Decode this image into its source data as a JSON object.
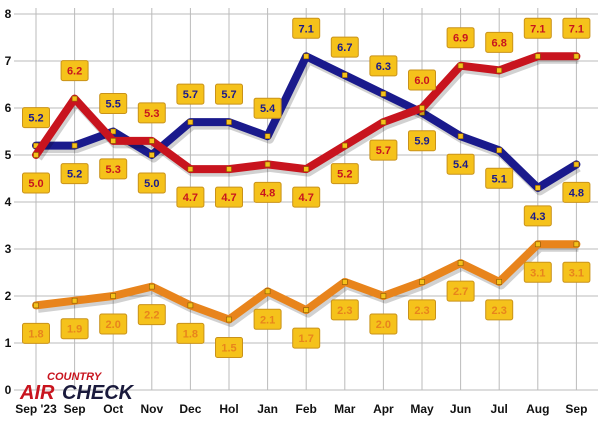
{
  "chart_data": {
    "type": "line",
    "categories": [
      "Sep '23",
      "Sep",
      "Oct",
      "Nov",
      "Dec",
      "Hol",
      "Jan",
      "Feb",
      "Mar",
      "Apr",
      "May",
      "Jun",
      "Jul",
      "Aug",
      "Sep"
    ],
    "ylim": [
      0,
      8
    ],
    "yticks": [
      "0",
      "1",
      "2",
      "3",
      "4",
      "5",
      "6",
      "7",
      "8"
    ],
    "grid": true,
    "series": [
      {
        "color": "#1a1a8c",
        "values": [
          5.2,
          5.2,
          5.5,
          5.0,
          5.7,
          5.7,
          5.4,
          7.1,
          6.7,
          6.3,
          5.9,
          5.4,
          5.1,
          4.3,
          4.8
        ],
        "labels": [
          "5.2",
          "5.2",
          "5.5",
          "5.0",
          "5.7",
          "5.7",
          "5.4",
          "7.1",
          "6.7",
          "6.3",
          "5.9",
          "5.4",
          "5.1",
          "4.3",
          "4.8"
        ]
      },
      {
        "color": "#c8141e",
        "values": [
          5.0,
          6.2,
          5.3,
          5.3,
          4.7,
          4.7,
          4.8,
          4.7,
          5.2,
          5.7,
          6.0,
          6.9,
          6.8,
          7.1,
          7.1
        ],
        "labels": [
          "5.0",
          "6.2",
          "5.3",
          "5.3",
          "4.7",
          "4.7",
          "4.8",
          "4.7",
          "5.2",
          "5.7",
          "6.0",
          "6.9",
          "6.8",
          "7.1",
          "7.1"
        ]
      },
      {
        "color": "#e8841c",
        "values": [
          1.8,
          1.9,
          2.0,
          2.2,
          1.8,
          1.5,
          2.1,
          1.7,
          2.3,
          2.0,
          2.3,
          2.7,
          2.3,
          3.1,
          3.1
        ],
        "labels": [
          "1.8",
          "1.9",
          "2.0",
          "2.2",
          "1.8",
          "1.5",
          "2.1",
          "1.7",
          "2.3",
          "2.0",
          "2.3",
          "2.7",
          "2.3",
          "3.1",
          "3.1"
        ]
      }
    ]
  },
  "logo": {
    "line1": "COUNTRY",
    "line2a": "AIR",
    "line2b": "CHECK"
  },
  "colors": {
    "label_box": "#f5c21b",
    "label_border": "#c9921a",
    "grid": "#bbbbbb"
  }
}
